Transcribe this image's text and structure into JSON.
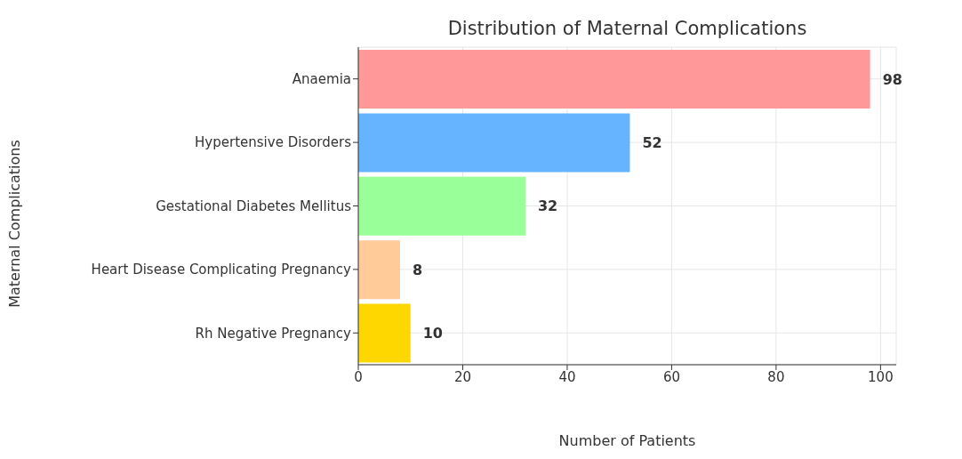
{
  "chart_data": {
    "type": "bar",
    "orientation": "horizontal",
    "title": "Distribution of Maternal Complications",
    "xlabel": "Number of Patients",
    "ylabel": "Maternal Complications",
    "categories": [
      "Anaemia",
      "Hypertensive Disorders",
      "Gestational Diabetes Mellitus",
      "Heart Disease Complicating Pregnancy",
      "Rh Negative Pregnancy"
    ],
    "values": [
      98,
      52,
      32,
      8,
      10
    ],
    "colors": [
      "#ff9999",
      "#66b3ff",
      "#99ff99",
      "#ffcc99",
      "#ffd700"
    ],
    "xlim": [
      0,
      103
    ],
    "xticks": [
      0,
      20,
      40,
      60,
      80,
      100
    ],
    "grid": true,
    "data_labels": true
  }
}
